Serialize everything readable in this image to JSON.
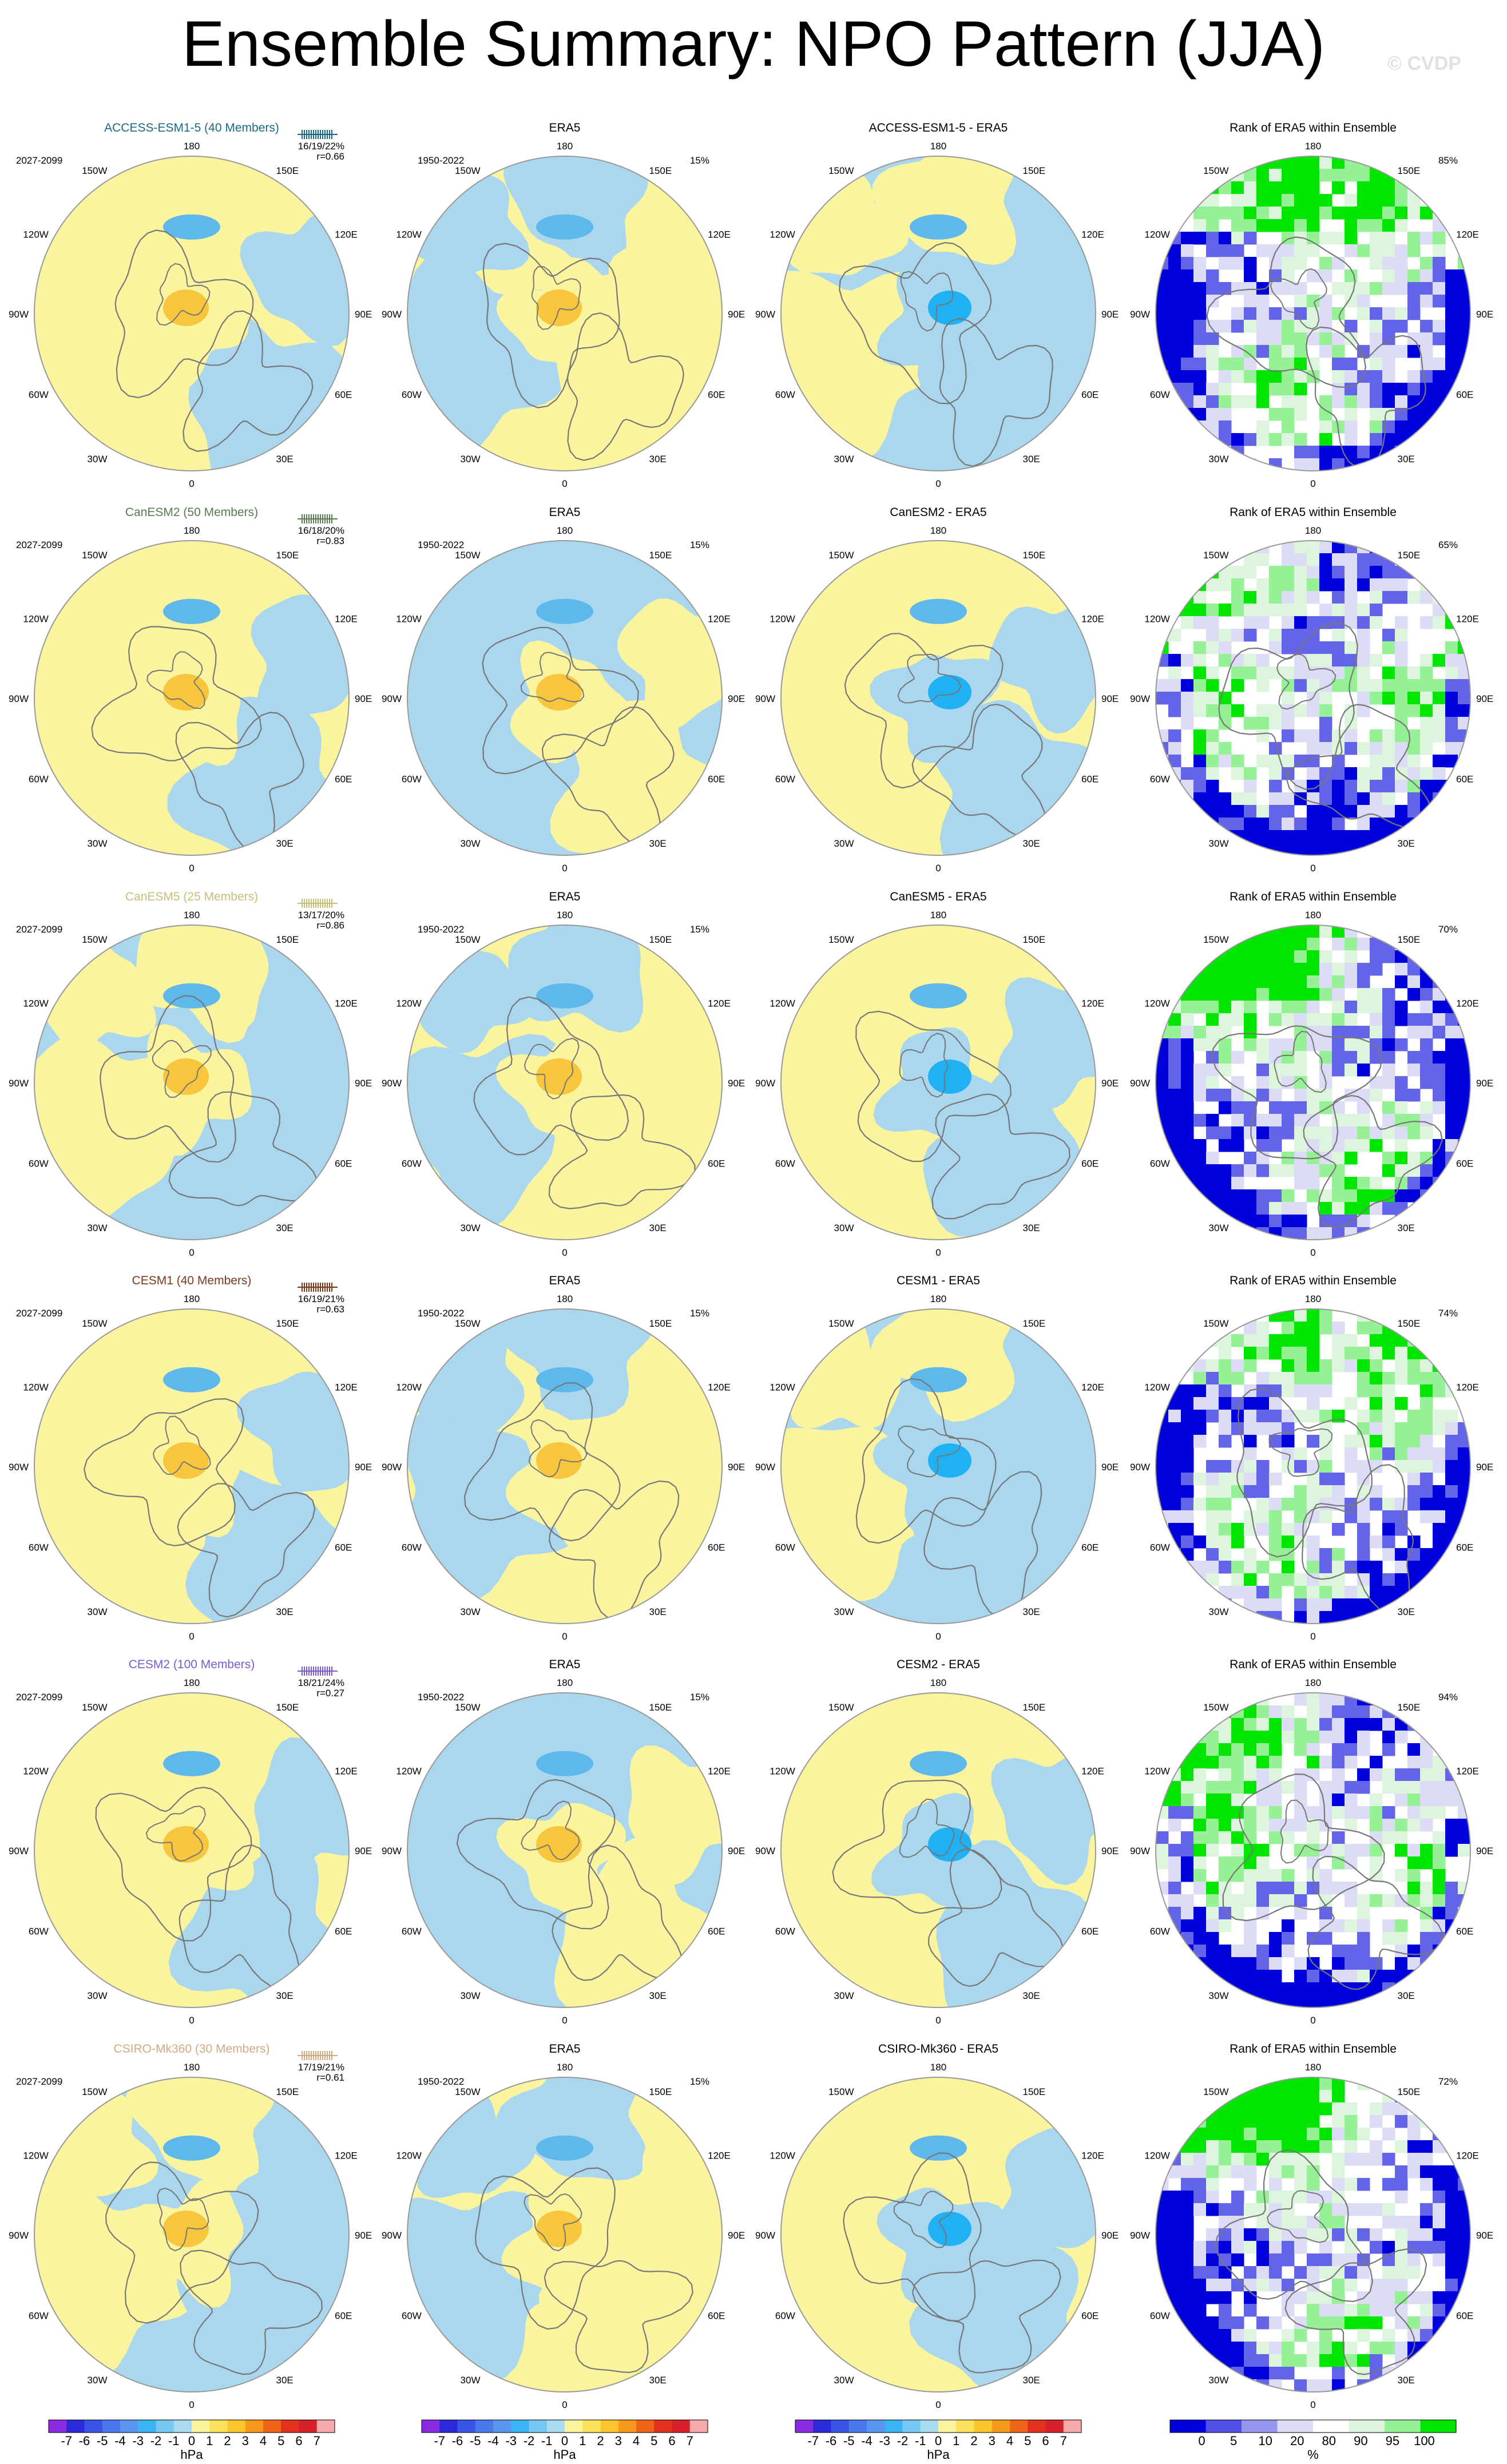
{
  "title": "Ensemble Summary: NPO Pattern (JJA)",
  "credit": "© CVDP",
  "colors": {
    "neg_light": "#aad7ee",
    "pos_light": "#fbf49e",
    "neg_mid": "#5fb8ec",
    "pos_mid": "#f7c63c",
    "neg_strong": "#1fb1f4",
    "rank_low_strong": "#0000dc",
    "rank_low_mid": "#6464e8",
    "rank_low_light": "#dcdcf6",
    "rank_high_light": "#dcf5dc",
    "rank_high_mid": "#96f096",
    "rank_high_strong": "#00e600",
    "coast": "#777777"
  },
  "rows": [
    {
      "model": "ACCESS-ESM1-5 (40 Members)",
      "model_color": "#1a6a84",
      "period": "2027-2099",
      "stats": "16/19/22%",
      "corr": "r=0.66",
      "era_label": "ERA5",
      "era_period": "1950-2022",
      "era_pct": "15%",
      "diff_label": "ACCESS-ESM1-5 - ERA5",
      "rank_label": "Rank of ERA5 within Ensemble",
      "rank_pct": "85%"
    },
    {
      "model": "CanESM2 (50 Members)",
      "model_color": "#5a7a50",
      "period": "2027-2099",
      "stats": "16/18/20%",
      "corr": "r=0.83",
      "era_label": "ERA5",
      "era_period": "1950-2022",
      "era_pct": "15%",
      "diff_label": "CanESM2 - ERA5",
      "rank_label": "Rank of ERA5 within Ensemble",
      "rank_pct": "65%"
    },
    {
      "model": "CanESM5 (25 Members)",
      "model_color": "#c8be78",
      "period": "2027-2099",
      "stats": "13/17/20%",
      "corr": "r=0.86",
      "era_label": "ERA5",
      "era_period": "1950-2022",
      "era_pct": "15%",
      "diff_label": "CanESM5 - ERA5",
      "rank_label": "Rank of ERA5 within Ensemble",
      "rank_pct": "70%"
    },
    {
      "model": "CESM1 (40 Members)",
      "model_color": "#7a3a1a",
      "period": "2027-2099",
      "stats": "16/19/21%",
      "corr": "r=0.63",
      "era_label": "ERA5",
      "era_period": "1950-2022",
      "era_pct": "15%",
      "diff_label": "CESM1 - ERA5",
      "rank_label": "Rank of ERA5 within Ensemble",
      "rank_pct": "74%"
    },
    {
      "model": "CESM2 (100 Members)",
      "model_color": "#7a5ad2",
      "period": "2027-2099",
      "stats": "18/21/24%",
      "corr": "r=0.27",
      "era_label": "ERA5",
      "era_period": "1950-2022",
      "era_pct": "15%",
      "diff_label": "CESM2 - ERA5",
      "rank_label": "Rank of ERA5 within Ensemble",
      "rank_pct": "94%"
    },
    {
      "model": "CSIRO-Mk360 (30 Members)",
      "model_color": "#d2aa82",
      "period": "2027-2099",
      "stats": "17/19/21%",
      "corr": "r=0.61",
      "era_label": "ERA5",
      "era_period": "1950-2022",
      "era_pct": "15%",
      "diff_label": "CSIRO-Mk360 - ERA5",
      "rank_label": "Rank of ERA5 within Ensemble",
      "rank_pct": "72%"
    }
  ],
  "map_labels": {
    "top": "180",
    "bottom": "0",
    "upper_left": "150W",
    "upper_right": "150E",
    "mid_upper_left": "120W",
    "mid_upper_right": "120E",
    "left": "90W",
    "right": "90E",
    "mid_lower_left": "60W",
    "mid_lower_right": "60E",
    "lower_left": "30W",
    "lower_right": "30E"
  },
  "colorbars": {
    "hpa": {
      "labels": [
        "-7",
        "-6",
        "-5",
        "-4",
        "-3",
        "-2",
        "-1",
        "0",
        "1",
        "2",
        "3",
        "4",
        "5",
        "6",
        "7"
      ],
      "unit": "hPa",
      "colors": [
        "#8a2be2",
        "#2a2ad8",
        "#3a54e8",
        "#4a78ec",
        "#5a96f0",
        "#3ab4f4",
        "#76c8f2",
        "#a9daf0",
        "#fbf49e",
        "#fce25a",
        "#fbc62c",
        "#f79a1c",
        "#f0641a",
        "#e1321e",
        "#d8202a",
        "#f7aaaa"
      ]
    },
    "rank": {
      "labels": [
        "0",
        "5",
        "10",
        "20",
        "80",
        "90",
        "95",
        "100"
      ],
      "unit": "%",
      "colors": [
        "#0000dc",
        "#5050e6",
        "#9696ee",
        "#dcdcf6",
        "#ffffff",
        "#dcf5dc",
        "#96f096",
        "#00e600"
      ]
    }
  }
}
